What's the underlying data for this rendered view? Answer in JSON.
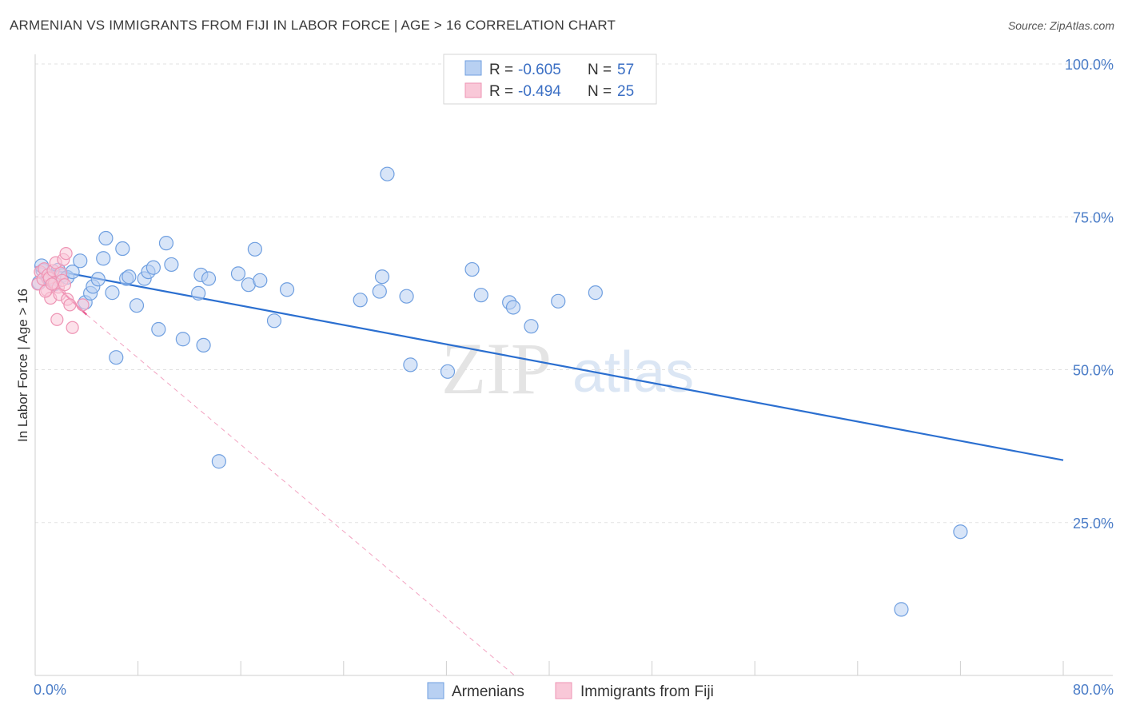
{
  "title": "ARMENIAN VS IMMIGRANTS FROM FIJI IN LABOR FORCE | AGE > 16 CORRELATION CHART",
  "source": "Source: ZipAtlas.com",
  "watermark": {
    "zip": "ZIP",
    "atlas": "atlas"
  },
  "chart_data": {
    "type": "scatter",
    "ylabel": "In Labor Force | Age > 16",
    "xlim": [
      0,
      80
    ],
    "ylim": [
      0,
      100
    ],
    "x_tick_labels": {
      "left": "0.0%",
      "right": "80.0%"
    },
    "y_ticks": [
      {
        "value": 100,
        "label": "100.0%"
      },
      {
        "value": 75,
        "label": "75.0%"
      },
      {
        "value": 50,
        "label": "50.0%"
      },
      {
        "value": 25,
        "label": "25.0%"
      }
    ],
    "grid": true,
    "legend_top": [
      {
        "r_label": "R =",
        "r_value": "-0.605",
        "n_label": "N =",
        "n_value": "57"
      },
      {
        "r_label": "R =",
        "r_value": "-0.494",
        "n_label": "N =",
        "n_value": "25"
      }
    ],
    "series": [
      {
        "name": "Armenians",
        "color": "#6f9fe0",
        "fill": "#b8d0f2",
        "line_color": "#2b6fd0",
        "trend": {
          "x": [
            0,
            80
          ],
          "y": [
            66.8,
            35.2
          ]
        },
        "points": [
          [
            0.3,
            64.2
          ],
          [
            0.6,
            66.2
          ],
          [
            1.0,
            65.0
          ],
          [
            1.2,
            64.8
          ],
          [
            1.5,
            64.0
          ],
          [
            1.8,
            66.3
          ],
          [
            2.1,
            65.4
          ],
          [
            2.5,
            65.1
          ],
          [
            2.9,
            66.0
          ],
          [
            3.5,
            67.8
          ],
          [
            3.9,
            61.0
          ],
          [
            4.3,
            62.5
          ],
          [
            4.5,
            63.6
          ],
          [
            4.9,
            64.8
          ],
          [
            5.3,
            68.2
          ],
          [
            5.5,
            71.5
          ],
          [
            6.0,
            62.6
          ],
          [
            6.3,
            52.0
          ],
          [
            6.8,
            69.8
          ],
          [
            7.1,
            64.9
          ],
          [
            7.3,
            65.2
          ],
          [
            7.9,
            60.5
          ],
          [
            8.5,
            64.9
          ],
          [
            8.8,
            66.0
          ],
          [
            9.2,
            66.7
          ],
          [
            9.6,
            56.6
          ],
          [
            10.2,
            70.7
          ],
          [
            10.6,
            67.2
          ],
          [
            11.5,
            55.0
          ],
          [
            12.7,
            62.5
          ],
          [
            12.9,
            65.5
          ],
          [
            13.1,
            54.0
          ],
          [
            13.5,
            64.9
          ],
          [
            14.3,
            35.0
          ],
          [
            15.8,
            65.7
          ],
          [
            16.6,
            63.9
          ],
          [
            17.1,
            69.7
          ],
          [
            17.5,
            64.6
          ],
          [
            18.6,
            58.0
          ],
          [
            19.6,
            63.1
          ],
          [
            25.3,
            61.4
          ],
          [
            26.8,
            62.8
          ],
          [
            27.0,
            65.2
          ],
          [
            27.4,
            82.0
          ],
          [
            28.9,
            62.0
          ],
          [
            29.2,
            50.8
          ],
          [
            32.1,
            49.7
          ],
          [
            34.0,
            66.4
          ],
          [
            34.7,
            62.2
          ],
          [
            36.9,
            61.0
          ],
          [
            37.2,
            60.2
          ],
          [
            38.6,
            57.1
          ],
          [
            40.7,
            61.2
          ],
          [
            43.6,
            62.6
          ],
          [
            67.4,
            10.8
          ],
          [
            72.0,
            23.5
          ],
          [
            0.5,
            67.0
          ]
        ]
      },
      {
        "name": "Immigrants from Fiji",
        "color": "#ee94b4",
        "fill": "#f9c8d8",
        "line_color": "#e8588f",
        "trend": {
          "x": [
            0,
            4.0
          ],
          "y": [
            66.9,
            59.0
          ]
        },
        "trend_dashed": {
          "x": [
            4.0,
            37.3
          ],
          "y": [
            59.0,
            0
          ]
        },
        "points": [
          [
            0.2,
            64.0
          ],
          [
            0.4,
            66.0
          ],
          [
            0.6,
            64.8
          ],
          [
            0.7,
            66.5
          ],
          [
            0.9,
            63.0
          ],
          [
            1.0,
            65.5
          ],
          [
            1.1,
            65.0
          ],
          [
            1.2,
            61.7
          ],
          [
            1.4,
            66.2
          ],
          [
            1.5,
            64.2
          ],
          [
            1.6,
            67.5
          ],
          [
            1.7,
            58.2
          ],
          [
            1.8,
            63.5
          ],
          [
            1.9,
            62.3
          ],
          [
            2.0,
            65.8
          ],
          [
            2.1,
            64.6
          ],
          [
            2.2,
            68.0
          ],
          [
            2.3,
            63.9
          ],
          [
            2.4,
            69.0
          ],
          [
            2.5,
            61.5
          ],
          [
            2.7,
            60.6
          ],
          [
            2.9,
            56.9
          ],
          [
            0.8,
            62.8
          ],
          [
            1.3,
            64.0
          ],
          [
            3.7,
            60.6
          ]
        ]
      }
    ]
  }
}
